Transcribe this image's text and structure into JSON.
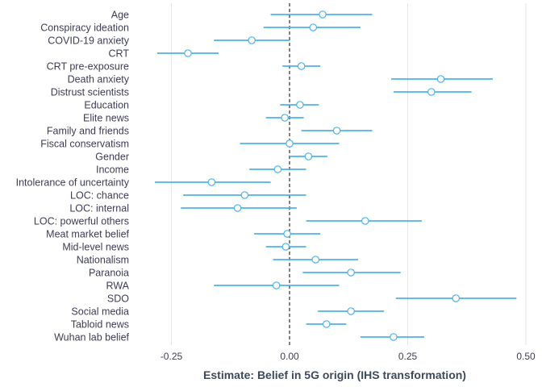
{
  "chart_data": {
    "type": "forest",
    "xlabel": "Estimate: Belief in 5G origin (IHS transformation)",
    "xlim": [
      -0.3,
      0.5
    ],
    "xticks": [
      -0.25,
      0.0,
      0.25,
      0.5
    ],
    "xtick_labels": [
      "-0.25",
      "0.00",
      "0.25",
      "0.50"
    ],
    "reference_line": 0,
    "grid": true,
    "colors": {
      "estimate": "#4db3e8",
      "point_fill": "#ffffff",
      "grid": "#e6e6e6",
      "reference": "#000000"
    },
    "rows": [
      {
        "label": "Age",
        "estimate": 0.07,
        "lower": -0.04,
        "upper": 0.175
      },
      {
        "label": "Conspiracy ideation",
        "estimate": 0.05,
        "lower": -0.055,
        "upper": 0.15
      },
      {
        "label": "COVID-19 anxiety",
        "estimate": -0.08,
        "lower": -0.16,
        "upper": 0.0
      },
      {
        "label": "CRT",
        "estimate": -0.215,
        "lower": -0.28,
        "upper": -0.15
      },
      {
        "label": "CRT pre-exposure",
        "estimate": 0.025,
        "lower": -0.015,
        "upper": 0.065
      },
      {
        "label": "Death anxiety",
        "estimate": 0.32,
        "lower": 0.215,
        "upper": 0.43
      },
      {
        "label": "Distrust scientists",
        "estimate": 0.3,
        "lower": 0.22,
        "upper": 0.385
      },
      {
        "label": "Education",
        "estimate": 0.022,
        "lower": -0.02,
        "upper": 0.062
      },
      {
        "label": "Elite news",
        "estimate": -0.01,
        "lower": -0.05,
        "upper": 0.03
      },
      {
        "label": "Family and friends",
        "estimate": 0.1,
        "lower": 0.025,
        "upper": 0.175
      },
      {
        "label": "Fiscal conservatism",
        "estimate": 0.0,
        "lower": -0.105,
        "upper": 0.105
      },
      {
        "label": "Gender",
        "estimate": 0.04,
        "lower": 0.0,
        "upper": 0.08
      },
      {
        "label": "Income",
        "estimate": -0.025,
        "lower": -0.085,
        "upper": 0.035
      },
      {
        "label": "Intolerance of uncertainty",
        "estimate": -0.165,
        "lower": -0.285,
        "upper": -0.04
      },
      {
        "label": "LOC: chance",
        "estimate": -0.095,
        "lower": -0.225,
        "upper": 0.035
      },
      {
        "label": "LOC: internal",
        "estimate": -0.11,
        "lower": -0.23,
        "upper": 0.015
      },
      {
        "label": "LOC: powerful others",
        "estimate": 0.16,
        "lower": 0.035,
        "upper": 0.28
      },
      {
        "label": "Meat market belief",
        "estimate": -0.005,
        "lower": -0.075,
        "upper": 0.065
      },
      {
        "label": "Mid-level news",
        "estimate": -0.008,
        "lower": -0.05,
        "upper": 0.035
      },
      {
        "label": "Nationalism",
        "estimate": 0.055,
        "lower": -0.035,
        "upper": 0.145
      },
      {
        "label": "Paranoia",
        "estimate": 0.13,
        "lower": 0.028,
        "upper": 0.235
      },
      {
        "label": "RWA",
        "estimate": -0.028,
        "lower": -0.16,
        "upper": 0.105
      },
      {
        "label": "SDO",
        "estimate": 0.352,
        "lower": 0.225,
        "upper": 0.48
      },
      {
        "label": "Social media",
        "estimate": 0.13,
        "lower": 0.06,
        "upper": 0.2
      },
      {
        "label": "Tabloid news",
        "estimate": 0.078,
        "lower": 0.035,
        "upper": 0.12
      },
      {
        "label": "Wuhan lab belief",
        "estimate": 0.22,
        "lower": 0.15,
        "upper": 0.285
      }
    ]
  }
}
